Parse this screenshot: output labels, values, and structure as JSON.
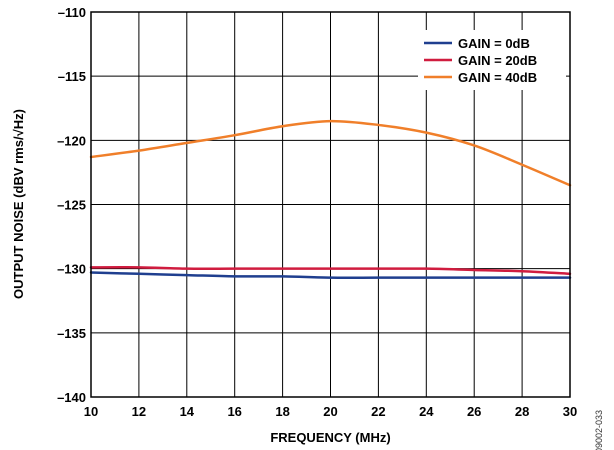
{
  "chart_data": {
    "type": "line",
    "title": "",
    "xlabel": "FREQUENCY (MHz)",
    "ylabel": "OUTPUT NOISE (dBV rms/√Hz)",
    "xlim": [
      10,
      30
    ],
    "ylim": [
      -140,
      -110
    ],
    "x_ticks": [
      10,
      12,
      14,
      16,
      18,
      20,
      22,
      24,
      26,
      28,
      30
    ],
    "y_ticks": [
      -110,
      -115,
      -120,
      -125,
      -130,
      -135,
      -140
    ],
    "x_tick_labels": [
      "10",
      "12",
      "14",
      "16",
      "18",
      "20",
      "22",
      "24",
      "26",
      "28",
      "30"
    ],
    "y_tick_labels": [
      "–110",
      "–115",
      "–120",
      "–125",
      "–130",
      "–135",
      "–140"
    ],
    "grid": true,
    "legend_position": "top-right",
    "x": [
      10,
      12,
      14,
      16,
      18,
      20,
      22,
      24,
      26,
      28,
      30
    ],
    "series": [
      {
        "name": "GAIN = 0dB",
        "color": "#1f3f8f",
        "values": [
          -130.3,
          -130.4,
          -130.5,
          -130.6,
          -130.6,
          -130.7,
          -130.7,
          -130.7,
          -130.7,
          -130.7,
          -130.7
        ]
      },
      {
        "name": "GAIN = 20dB",
        "color": "#d01c3f",
        "values": [
          -129.9,
          -129.9,
          -130.0,
          -130.0,
          -130.0,
          -130.0,
          -130.0,
          -130.0,
          -130.1,
          -130.2,
          -130.4
        ]
      },
      {
        "name": "GAIN = 40dB",
        "color": "#f07f2a",
        "values": [
          -121.3,
          -120.8,
          -120.2,
          -119.6,
          -118.9,
          -118.5,
          -118.8,
          -119.4,
          -120.4,
          -121.9,
          -123.5
        ]
      }
    ]
  },
  "figure_id": "09002-033"
}
